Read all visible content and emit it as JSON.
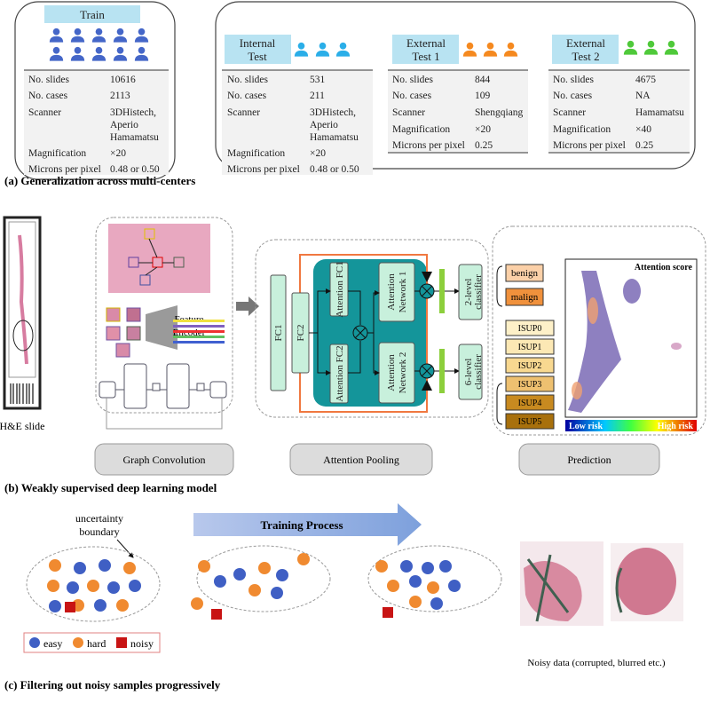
{
  "panel_a": {
    "caption": "(a) Generalization across multi-centers",
    "row_labels": [
      "No. slides",
      "No. cases",
      "Scanner",
      "Magnification",
      "Microns per pixel"
    ],
    "cohorts": [
      {
        "title": "Train",
        "title_lines": [
          "Train"
        ],
        "icon_color": "#4466c8",
        "values": [
          "10616",
          "2113",
          "3DHistech,",
          "Aperio",
          "Hamamatsu",
          "×20",
          "0.48 or 0.50"
        ]
      },
      {
        "title_lines": [
          "Internal",
          "Test"
        ],
        "icon_color": "#2aaee8",
        "values": [
          "531",
          "211",
          "3DHistech,",
          "Aperio",
          "Hamamatsu",
          "×20",
          "0.48 or 0.50"
        ]
      },
      {
        "title_lines": [
          "External",
          "Test 1"
        ],
        "icon_color": "#f5891f",
        "values": [
          "844",
          "109",
          "Shengqiang",
          "×20",
          "0.25"
        ]
      },
      {
        "title_lines": [
          "External",
          "Test 2"
        ],
        "icon_color": "#4fc93a",
        "values": [
          "4675",
          "NA",
          "Hamamatsu",
          "×40",
          "0.25"
        ]
      }
    ]
  },
  "panel_b": {
    "caption": "(b) Weakly supervised deep learning model",
    "slide_label": "H&E slide",
    "feature_encoder": [
      "Feature",
      "Encoder"
    ],
    "fc1": "FC1",
    "fc2": "FC2",
    "attention_fc1": "Attention FC1",
    "attention_fc2": "Attention FC2",
    "attention_network_1": [
      "Attention",
      "Network 1"
    ],
    "attention_network_2": [
      "Attention",
      "Network 2"
    ],
    "classifier_2": [
      "2-level",
      "classifier"
    ],
    "classifier_6": [
      "6-level",
      "classifier"
    ],
    "labels_binary": [
      "benign",
      "malign"
    ],
    "labels_isup": [
      "ISUP0",
      "ISUP1",
      "ISUP2",
      "ISUP3",
      "ISUP4",
      "ISUP5"
    ],
    "attention_score": "Attention score",
    "low_risk": "Low risk",
    "high_risk": "High risk",
    "stage_buttons": [
      "Graph Convolution",
      "Attention Pooling",
      "Prediction"
    ]
  },
  "panel_c": {
    "caption": "(c) Filtering out noisy samples progressively",
    "boundary_label": [
      "uncertainty",
      "boundary"
    ],
    "training_process": "Training Process",
    "legend": {
      "easy": "easy",
      "hard": "hard",
      "noisy": "noisy"
    },
    "noisy_caption": "Noisy data (corrupted, blurred  etc.)",
    "colors": {
      "easy": "#3f5fc4",
      "hard": "#f08a30",
      "noisy": "#c81414"
    }
  }
}
